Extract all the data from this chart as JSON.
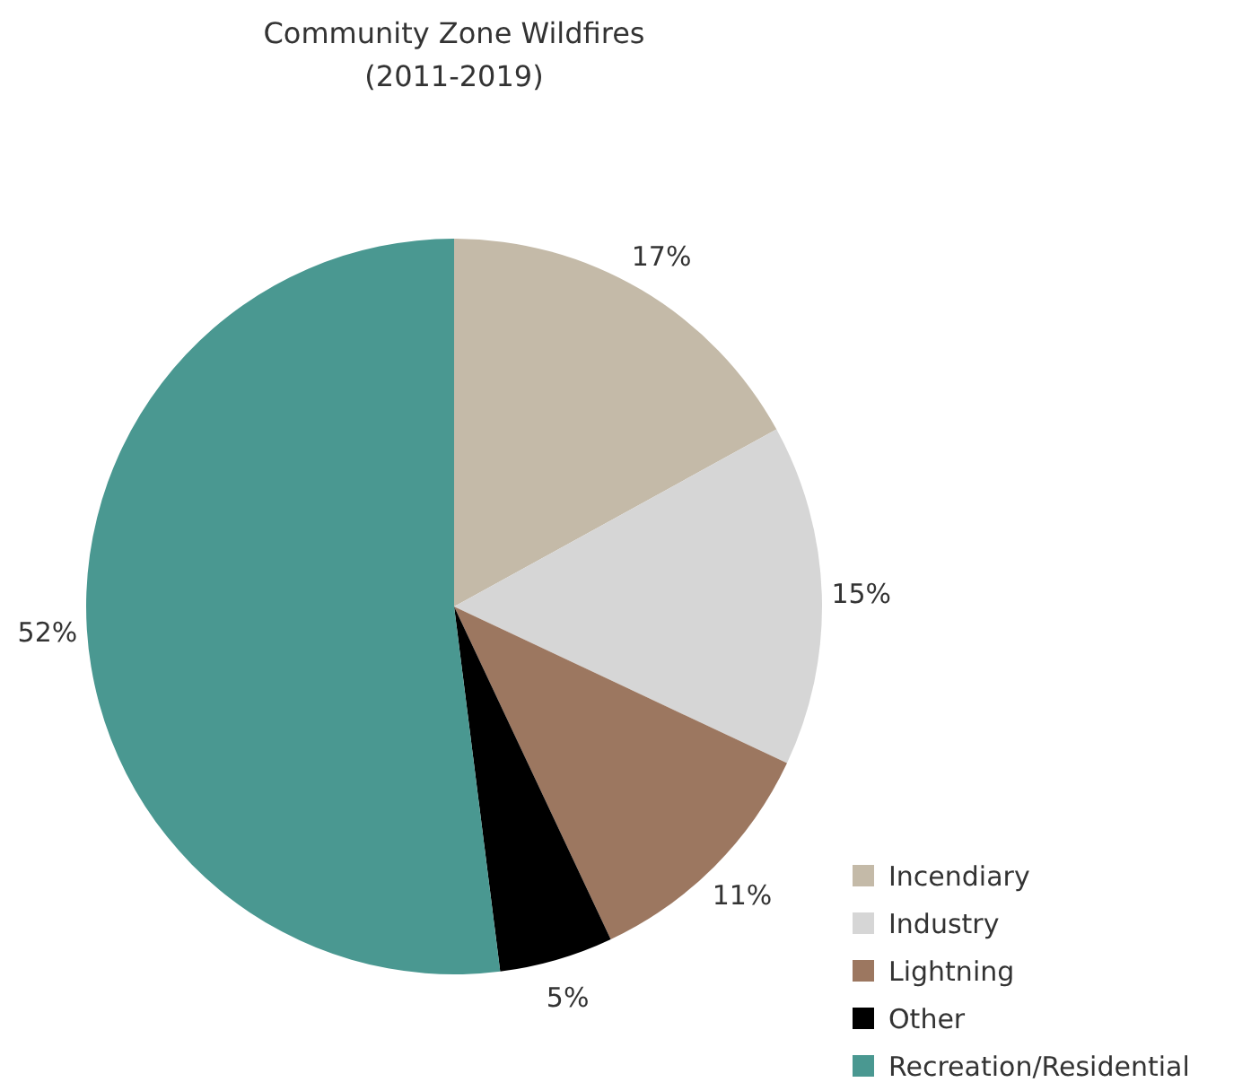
{
  "chart_data": {
    "type": "pie",
    "title": "Community Zone Wildfires\n(2011-2019)",
    "categories": [
      "Incendiary",
      "Industry",
      "Lightning",
      "Other",
      "Recreation/Residential"
    ],
    "values": [
      17,
      15,
      11,
      5,
      52
    ],
    "value_labels": [
      "17%",
      "15%",
      "11%",
      "5%",
      "52%"
    ],
    "colors": [
      "#c4baa8",
      "#d6d6d6",
      "#9c7760",
      "#000000",
      "#4a9891"
    ],
    "legend": "bottom right"
  }
}
